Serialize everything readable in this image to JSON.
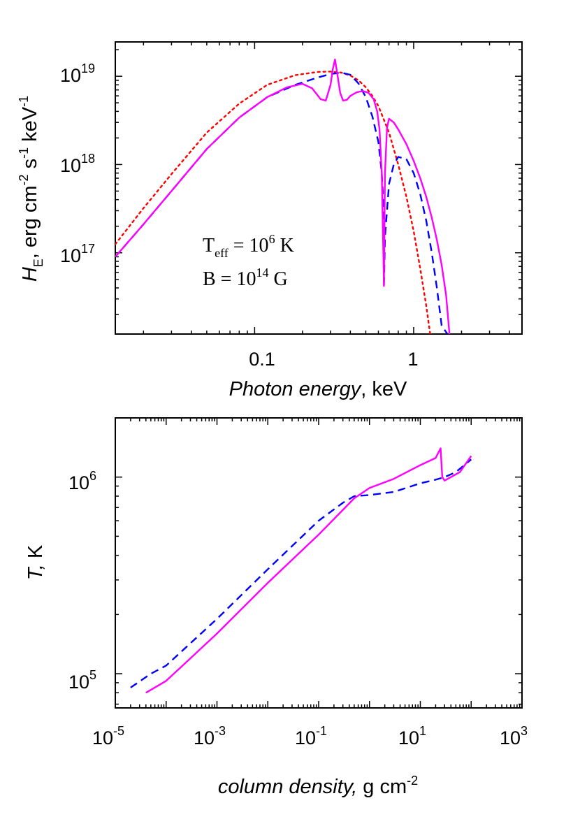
{
  "chart_data": [
    {
      "type": "line",
      "xscale": "log",
      "yscale": "log",
      "xlim": [
        0.0133,
        4.8
      ],
      "ylim": [
        1.2e+16,
        2.45e+19
      ],
      "xlabel": "Photon energy",
      "xlabel_unit": ",  keV",
      "ylabel_main": "H",
      "ylabel_sub": "E",
      "ylabel_unit": "erg cm-2 s-1 keV-1",
      "x_ticks": [
        {
          "value": 0.1,
          "label": "0.1"
        },
        {
          "value": 1,
          "label": "1"
        }
      ],
      "y_ticks": [
        {
          "value": 1e+17,
          "base": "10",
          "exp": "17"
        },
        {
          "value": 1e+18,
          "base": "10",
          "exp": "18"
        },
        {
          "value": 1e+19,
          "base": "10",
          "exp": "19"
        }
      ],
      "annotations": {
        "teff": {
          "main": "T",
          "sub": "eff",
          "mid": " = 10",
          "exp": "6",
          "tail": " K"
        },
        "bfield": {
          "main": "B = 10",
          "exp": "14",
          "tail": " G"
        }
      },
      "series": [
        {
          "color": "#ff0000",
          "style": "dotted",
          "x": [
            0.0133,
            0.02,
            0.03,
            0.05,
            0.08,
            0.12,
            0.18,
            0.25,
            0.3,
            0.35,
            0.4,
            0.45,
            0.5,
            0.55,
            0.6,
            0.7,
            0.8,
            0.9,
            1.0,
            1.1,
            1.2,
            1.27
          ],
          "y": [
            1.25e+17,
            3.2e+17,
            7.8e+17,
            2.3e+18,
            4.9e+18,
            8e+18,
            1.03e+19,
            1.12e+19,
            1.13e+19,
            1.1e+19,
            1.02e+19,
            9e+18,
            7.5e+18,
            6e+18,
            4.6e+18,
            2.3e+18,
            1e+18,
            4.3e+17,
            1.75e+17,
            6.6e+16,
            2.5e+16,
            1.2e+16
          ]
        },
        {
          "color": "#0000ff",
          "style": "dashed",
          "x": [
            0.0133,
            0.02,
            0.03,
            0.05,
            0.08,
            0.12,
            0.18,
            0.25,
            0.3,
            0.35,
            0.4,
            0.45,
            0.5,
            0.55,
            0.6,
            0.63,
            0.645,
            0.65,
            0.66,
            0.7,
            0.75,
            0.8,
            0.9,
            1.0,
            1.1,
            1.2,
            1.3,
            1.4,
            1.5,
            1.63
          ],
          "y": [
            9e+16,
            2.1e+17,
            5e+17,
            1.5e+18,
            3.4e+18,
            5.8e+18,
            8e+18,
            9.7e+18,
            1.06e+19,
            1.1e+19,
            1.04e+19,
            8.3e+18,
            5.8e+18,
            3.5e+18,
            1.8e+18,
            8e+17,
            3.5e+17,
            4.2e+16,
            1.5e+17,
            6e+17,
            1e+18,
            1.22e+18,
            1.15e+18,
            8e+17,
            4.6e+17,
            2.3e+17,
            1e+17,
            4e+16,
            1.5e+16,
            1.2e+16
          ]
        },
        {
          "color": "#ff00ff",
          "style": "solid",
          "x": [
            0.0133,
            0.02,
            0.03,
            0.05,
            0.08,
            0.12,
            0.16,
            0.2,
            0.23,
            0.26,
            0.28,
            0.3,
            0.31,
            0.32,
            0.33,
            0.345,
            0.36,
            0.38,
            0.4,
            0.44,
            0.48,
            0.52,
            0.56,
            0.59,
            0.61,
            0.63,
            0.645,
            0.65,
            0.66,
            0.68,
            0.7,
            0.75,
            0.8,
            0.9,
            1.0,
            1.1,
            1.2,
            1.3,
            1.4,
            1.5,
            1.6,
            1.68
          ],
          "y": [
            9e+16,
            2.1e+17,
            5e+17,
            1.5e+18,
            3.4e+18,
            5.8e+18,
            7.5e+18,
            8.2e+18,
            7.3e+18,
            5.5e+18,
            5.3e+18,
            8e+18,
            1.2e+19,
            1.55e+19,
            1.1e+19,
            6.5e+18,
            5.3e+18,
            5.4e+18,
            6e+18,
            6.6e+18,
            6.8e+18,
            6.5e+18,
            5.5e+18,
            4e+18,
            2.5e+18,
            8e+17,
            1e+17,
            4.2e+16,
            8e+17,
            2.6e+18,
            3.3e+18,
            3e+18,
            2.5e+18,
            1.7e+18,
            1.1e+18,
            7e+17,
            4.3e+17,
            2.5e+17,
            1.4e+17,
            7.3e+16,
            3.3e+16,
            1.2e+16
          ]
        }
      ]
    },
    {
      "type": "line",
      "xscale": "log",
      "yscale": "log",
      "xlim": [
        1e-05,
        1000
      ],
      "ylim": [
        67000,
        2000000
      ],
      "xlabel": "column density,",
      "xlabel_unit": "  g cm-2",
      "ylabel": "T,",
      "ylabel_unit": "  K",
      "x_ticks": [
        {
          "value": 1e-05,
          "base": "10",
          "exp": "-5"
        },
        {
          "value": 0.001,
          "base": "10",
          "exp": "-3"
        },
        {
          "value": 0.1,
          "base": "10",
          "exp": "-1"
        },
        {
          "value": 10,
          "base": "10",
          "exp": "1"
        },
        {
          "value": 1000,
          "base": "10",
          "exp": "3"
        }
      ],
      "y_ticks": [
        {
          "value": 100000,
          "base": "10",
          "exp": "5"
        },
        {
          "value": 1000000,
          "base": "10",
          "exp": "6"
        }
      ],
      "series": [
        {
          "color": "#0000ff",
          "style": "dashed",
          "x": [
            2e-05,
            5e-05,
            0.0001,
            0.001,
            0.01,
            0.1,
            0.3,
            0.5,
            1,
            3,
            10,
            20,
            30,
            50,
            100
          ],
          "y": [
            85000,
            100000,
            110000,
            190000,
            340000,
            600000,
            740000,
            800000,
            810000,
            840000,
            930000,
            970000,
            1000000,
            1060000,
            1230000
          ]
        },
        {
          "color": "#ff00ff",
          "style": "solid",
          "x": [
            4e-05,
            0.0001,
            0.001,
            0.01,
            0.1,
            0.5,
            1,
            3,
            10,
            20,
            25,
            27,
            30,
            40,
            60,
            100
          ],
          "y": [
            80000,
            92000,
            160000,
            290000,
            510000,
            780000,
            880000,
            980000,
            1150000,
            1250000,
            1400000,
            1000000,
            960000,
            1000000,
            1060000,
            1280000
          ]
        }
      ]
    }
  ]
}
